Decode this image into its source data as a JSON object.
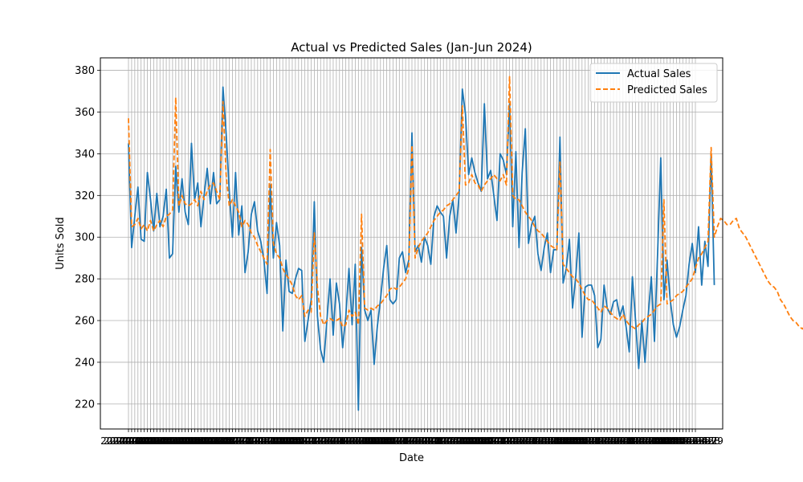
{
  "chart_data": {
    "type": "line",
    "title": "Actual vs Predicted Sales (Jan-Jun 2024)",
    "xlabel": "Date",
    "ylabel": "Units Sold",
    "x_start": "2024-01-01",
    "x_end": "2024-06-29",
    "ylim": [
      208,
      386
    ],
    "yticks": [
      220,
      240,
      260,
      280,
      300,
      320,
      340,
      360,
      380
    ],
    "grid": true,
    "legend_position": "top-right",
    "series": [
      {
        "name": "Actual Sales",
        "color": "#1f77b4",
        "style": "solid",
        "values": [
          345,
          295,
          310,
          324,
          299,
          298,
          331,
          318,
          303,
          321,
          305,
          310,
          323,
          290,
          292,
          334,
          312,
          328,
          312,
          306,
          345,
          318,
          326,
          305,
          320,
          333,
          316,
          331,
          316,
          318,
          372,
          350,
          322,
          300,
          331,
          301,
          315,
          283,
          293,
          311,
          317,
          303,
          298,
          289,
          273,
          325,
          290,
          307,
          296,
          255,
          289,
          274,
          273,
          280,
          285,
          284,
          250,
          260,
          270,
          317,
          262,
          246,
          240,
          260,
          280,
          253,
          278,
          268,
          247,
          262,
          285,
          258,
          287,
          217,
          295,
          265,
          260,
          265,
          239,
          257,
          270,
          285,
          296,
          270,
          268,
          270,
          290,
          293,
          283,
          289,
          350,
          293,
          296,
          288,
          300,
          296,
          287,
          310,
          315,
          312,
          310,
          290,
          310,
          318,
          302,
          321,
          371,
          359,
          330,
          338,
          331,
          326,
          322,
          364,
          328,
          332,
          320,
          308,
          340,
          337,
          330,
          364,
          305,
          341,
          295,
          331,
          352,
          297,
          306,
          310,
          292,
          284,
          295,
          302,
          283,
          294,
          294,
          348,
          278,
          285,
          299,
          266,
          281,
          302,
          252,
          276,
          277,
          277,
          272,
          247,
          251,
          277,
          266,
          263,
          269,
          270,
          262,
          267,
          257,
          245,
          281,
          260,
          237,
          260,
          240,
          262,
          281,
          250,
          292,
          338,
          270,
          289,
          270,
          258,
          252,
          257,
          265,
          272,
          287,
          297,
          283,
          305,
          277,
          298,
          286,
          340,
          277
        ]
      },
      {
        "name": "Predicted Sales",
        "color": "#ff7f0e",
        "style": "dashed",
        "values": [
          357,
          305,
          306,
          309,
          304,
          306,
          303,
          308,
          303,
          306,
          308,
          305,
          310,
          311,
          313,
          367,
          315,
          320,
          316,
          315,
          316,
          318,
          315,
          322,
          318,
          322,
          325,
          326,
          322,
          318,
          365,
          330,
          315,
          318,
          315,
          312,
          305,
          308,
          306,
          302,
          300,
          296,
          293,
          290,
          287,
          342,
          297,
          292,
          290,
          285,
          282,
          280,
          277,
          272,
          270,
          272,
          262,
          265,
          264,
          302,
          276,
          262,
          258,
          260,
          261,
          260,
          260,
          261,
          257,
          258,
          265,
          262,
          264,
          258,
          311,
          266,
          265,
          266,
          265,
          267,
          268,
          270,
          272,
          275,
          276,
          275,
          276,
          278,
          280,
          285,
          344,
          290,
          295,
          298,
          300,
          302,
          305,
          308,
          310,
          312,
          313,
          315,
          316,
          318,
          320,
          322,
          363,
          325,
          326,
          330,
          326,
          325,
          322,
          325,
          327,
          328,
          330,
          328,
          327,
          330,
          325,
          377,
          320,
          318,
          318,
          315,
          312,
          310,
          308,
          305,
          303,
          302,
          300,
          298,
          296,
          295,
          294,
          336,
          287,
          285,
          283,
          281,
          280,
          278,
          275,
          272,
          270,
          270,
          268,
          266,
          264,
          267,
          266,
          264,
          262,
          261,
          260,
          263,
          260,
          258,
          257,
          256,
          258,
          259,
          261,
          262,
          263,
          265,
          267,
          268,
          318,
          268,
          269,
          270,
          272,
          273,
          274,
          276,
          278,
          280,
          285,
          290,
          292,
          295,
          298,
          343,
          300,
          305,
          309,
          308,
          306,
          306,
          308,
          309,
          304,
          302,
          300,
          297,
          294,
          291,
          288,
          285,
          282,
          279,
          277,
          276,
          274,
          270,
          268,
          265,
          262,
          260,
          259,
          257,
          256,
          258,
          253,
          252,
          254
        ]
      }
    ]
  }
}
